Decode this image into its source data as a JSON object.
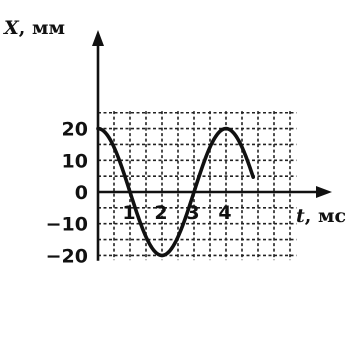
{
  "chart_data": {
    "type": "line",
    "xlabel": "t, мс",
    "ylabel": "X, мм",
    "x_ticks": [
      1,
      2,
      3,
      4
    ],
    "y_ticks": [
      -20,
      -10,
      0,
      10,
      20
    ],
    "xlim": [
      0,
      5
    ],
    "ylim": [
      -20,
      20
    ],
    "grid": true,
    "series": [
      {
        "function": "20*cos(pi*t/2)",
        "x": [
          0,
          0.5,
          1,
          1.5,
          2,
          2.5,
          3,
          3.5,
          4,
          4.5
        ],
        "values": [
          20,
          14.1,
          0,
          -14.1,
          -20,
          -14.1,
          0,
          14.1,
          20,
          14.1
        ]
      }
    ]
  },
  "axes": {
    "x_title_var": "t",
    "x_title_unit": ", мс",
    "y_title_var": "X",
    "y_title_unit": ", мм"
  }
}
